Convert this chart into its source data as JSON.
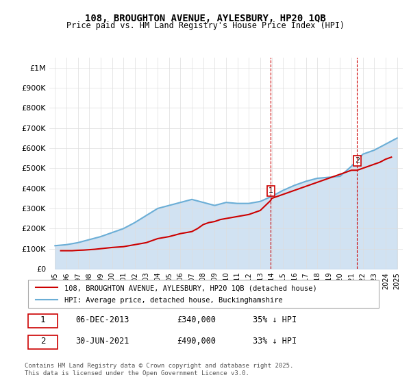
{
  "title_line1": "108, BROUGHTON AVENUE, AYLESBURY, HP20 1QB",
  "title_line2": "Price paid vs. HM Land Registry's House Price Index (HPI)",
  "xlabel": "",
  "ylabel": "",
  "ylim": [
    0,
    1050000
  ],
  "yticks": [
    0,
    100000,
    200000,
    300000,
    400000,
    500000,
    600000,
    700000,
    800000,
    900000,
    1000000
  ],
  "ytick_labels": [
    "£0",
    "£100K",
    "£200K",
    "£300K",
    "£400K",
    "£500K",
    "£600K",
    "£700K",
    "£800K",
    "£900K",
    "£1M"
  ],
  "hpi_color": "#6baed6",
  "hpi_fill_color": "#c6dbef",
  "price_color": "#cc0000",
  "grid_color": "#dddddd",
  "bg_color": "#ffffff",
  "legend_label_price": "108, BROUGHTON AVENUE, AYLESBURY, HP20 1QB (detached house)",
  "legend_label_hpi": "HPI: Average price, detached house, Buckinghamshire",
  "marker1_label": "1",
  "marker1_date": "06-DEC-2013",
  "marker1_price": "£340,000",
  "marker1_hpi": "35% ↓ HPI",
  "marker1_x": 2013.92,
  "marker1_y": 340000,
  "marker2_label": "2",
  "marker2_date": "30-JUN-2021",
  "marker2_price": "£490,000",
  "marker2_hpi": "33% ↓ HPI",
  "marker2_x": 2021.5,
  "marker2_y": 490000,
  "footer": "Contains HM Land Registry data © Crown copyright and database right 2025.\nThis data is licensed under the Open Government Licence v3.0.",
  "hpi_years": [
    1995,
    1996,
    1997,
    1998,
    1999,
    2000,
    2001,
    2002,
    2003,
    2004,
    2005,
    2006,
    2007,
    2008,
    2009,
    2010,
    2011,
    2012,
    2013,
    2014,
    2015,
    2016,
    2017,
    2018,
    2019,
    2020,
    2021,
    2022,
    2023,
    2024,
    2025
  ],
  "hpi_values": [
    115000,
    120000,
    130000,
    145000,
    160000,
    180000,
    200000,
    230000,
    265000,
    300000,
    315000,
    330000,
    345000,
    330000,
    315000,
    330000,
    325000,
    325000,
    335000,
    360000,
    390000,
    415000,
    435000,
    450000,
    455000,
    460000,
    510000,
    570000,
    590000,
    620000,
    650000
  ],
  "price_years": [
    1995.5,
    1996.5,
    1997,
    1997.5,
    1998,
    1998.5,
    1999,
    1999.5,
    2000,
    2000.5,
    2001,
    2001.5,
    2002,
    2002.5,
    2003,
    2003.5,
    2004,
    2005,
    2006,
    2007,
    2007.5,
    2008,
    2008.5,
    2009,
    2009.5,
    2010,
    2011,
    2012,
    2013,
    2013.92,
    2014,
    2015,
    2016,
    2017,
    2018,
    2019,
    2019.5,
    2020,
    2020.5,
    2021,
    2021.5,
    2022,
    2022.5,
    2023,
    2023.5,
    2024,
    2024.5
  ],
  "price_values": [
    90000,
    90000,
    92000,
    93000,
    95000,
    97000,
    100000,
    103000,
    106000,
    108000,
    110000,
    115000,
    120000,
    125000,
    130000,
    140000,
    150000,
    160000,
    175000,
    185000,
    200000,
    220000,
    230000,
    235000,
    245000,
    250000,
    260000,
    270000,
    290000,
    340000,
    350000,
    370000,
    390000,
    410000,
    430000,
    450000,
    460000,
    470000,
    480000,
    490000,
    490000,
    500000,
    510000,
    520000,
    530000,
    545000,
    555000
  ],
  "xlim": [
    1994.5,
    2025.5
  ],
  "xtick_years": [
    1995,
    1996,
    1997,
    1998,
    1999,
    2000,
    2001,
    2002,
    2003,
    2004,
    2005,
    2006,
    2007,
    2008,
    2009,
    2010,
    2011,
    2012,
    2013,
    2014,
    2015,
    2016,
    2017,
    2018,
    2019,
    2020,
    2021,
    2022,
    2023,
    2024,
    2025
  ]
}
